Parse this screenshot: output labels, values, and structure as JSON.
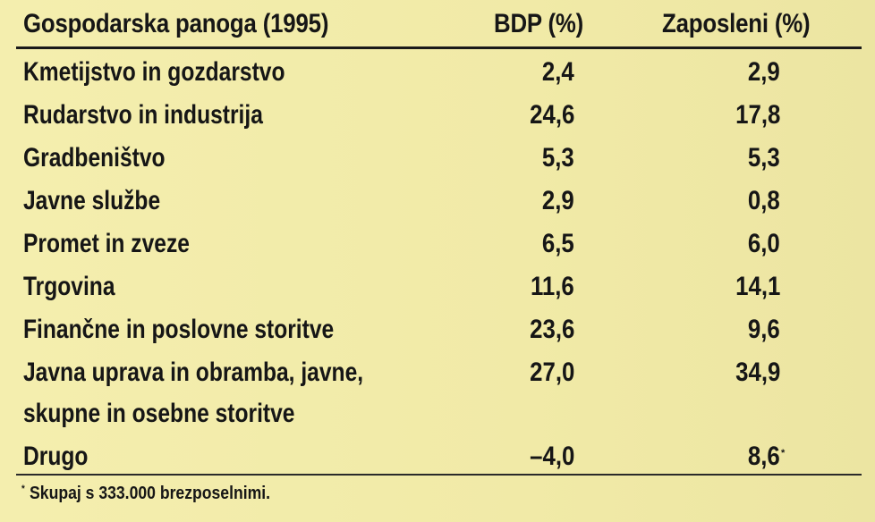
{
  "header": {
    "col_sector": "Gospodarska panoga (1995)",
    "col_gdp": "BDP (%)",
    "col_employed": "Zaposleni (%)"
  },
  "rows": [
    {
      "sector": "Kmetijstvo in gozdarstvo",
      "gdp": "2,4",
      "employed": "2,9"
    },
    {
      "sector": "Rudarstvo in industrija",
      "gdp": "24,6",
      "employed": "17,8"
    },
    {
      "sector": "Gradbeništvo",
      "gdp": "5,3",
      "employed": "5,3"
    },
    {
      "sector": "Javne službe",
      "gdp": "2,9",
      "employed": "0,8"
    },
    {
      "sector": "Promet in zveze",
      "gdp": "6,5",
      "employed": "6,0"
    },
    {
      "sector": "Trgovina",
      "gdp": "11,6",
      "employed": "14,1"
    },
    {
      "sector": "Finančne in poslovne storitve",
      "gdp": "23,6",
      "employed": "9,6"
    },
    {
      "sector": "Javna uprava in obramba, javne,",
      "sector_line2": "skupne in osebne storitve",
      "gdp": "27,0",
      "employed": "34,9"
    },
    {
      "sector": "Drugo",
      "gdp": "–4,0",
      "employed": "8,6",
      "employed_mark": "*"
    }
  ],
  "footnote": {
    "mark": "*",
    "text": "Skupaj s 333.000 brezposelnimi."
  },
  "colors": {
    "paper": "#f2ecab",
    "ink": "#161616"
  }
}
